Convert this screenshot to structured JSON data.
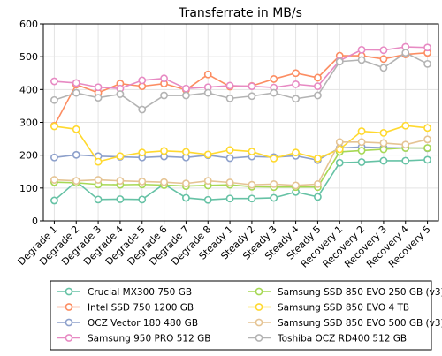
{
  "chart_data": {
    "type": "line",
    "title": "Transferrate in MB/s",
    "xlabel": "",
    "ylabel": "",
    "ylim": [
      0,
      600
    ],
    "yticks": [
      0,
      100,
      200,
      300,
      400,
      500,
      600
    ],
    "grid": true,
    "legend_position": "bottom",
    "categories": [
      "Degrade 1",
      "Degrade 2",
      "Degrade 3",
      "Degrade 4",
      "Degrade 5",
      "Degrade 6",
      "Degrade 7",
      "Degrade 8",
      "Steady 1",
      "Steady 2",
      "Steady 3",
      "Steady 4",
      "Steady 5",
      "Recovery 1",
      "Recovery 2",
      "Recovery 3",
      "Recovery 4",
      "Recovery 5"
    ],
    "series": [
      {
        "name": "Crucial MX300 750 GB",
        "color": "#66c2a5",
        "values": [
          62,
          120,
          65,
          66,
          65,
          112,
          70,
          64,
          68,
          68,
          70,
          88,
          73,
          177,
          179,
          183,
          183,
          186
        ]
      },
      {
        "name": "Intel SSD 750 1200 GB",
        "color": "#fc8d62",
        "values": [
          290,
          415,
          390,
          418,
          410,
          418,
          399,
          446,
          409,
          411,
          432,
          450,
          436,
          503,
          503,
          493,
          507,
          512
        ]
      },
      {
        "name": "OCZ Vector 180 480 GB",
        "color": "#8da0cb",
        "values": [
          193,
          201,
          197,
          195,
          193,
          196,
          193,
          200,
          191,
          196,
          194,
          198,
          185,
          222,
          225,
          223,
          222,
          221
        ]
      },
      {
        "name": "Samsung 950 PRO 512 GB",
        "color": "#e78ac3",
        "values": [
          425,
          420,
          407,
          403,
          428,
          434,
          403,
          407,
          412,
          410,
          406,
          416,
          410,
          488,
          521,
          520,
          530,
          528
        ]
      },
      {
        "name": "Samsung SSD 850 EVO 250 GB (v3)",
        "color": "#a6d854",
        "values": [
          118,
          116,
          111,
          110,
          111,
          109,
          106,
          108,
          110,
          104,
          103,
          103,
          103,
          210,
          214,
          218,
          222,
          222
        ]
      },
      {
        "name": "Samsung SSD 850 EVO 4 TB",
        "color": "#ffd92f",
        "values": [
          288,
          279,
          180,
          197,
          208,
          213,
          210,
          202,
          216,
          211,
          190,
          208,
          190,
          218,
          273,
          268,
          290,
          283
        ]
      },
      {
        "name": "Samsung SSD 850 EVO 500 GB (v3)",
        "color": "#e5c494",
        "values": [
          125,
          122,
          125,
          122,
          120,
          118,
          114,
          122,
          117,
          110,
          112,
          108,
          112,
          240,
          240,
          237,
          232,
          248
        ]
      },
      {
        "name": "Toshiba OCZ RD400 512 GB",
        "color": "#b3b3b3",
        "values": [
          368,
          390,
          375,
          386,
          339,
          382,
          382,
          390,
          373,
          380,
          390,
          372,
          382,
          485,
          490,
          466,
          512,
          478
        ]
      }
    ]
  }
}
